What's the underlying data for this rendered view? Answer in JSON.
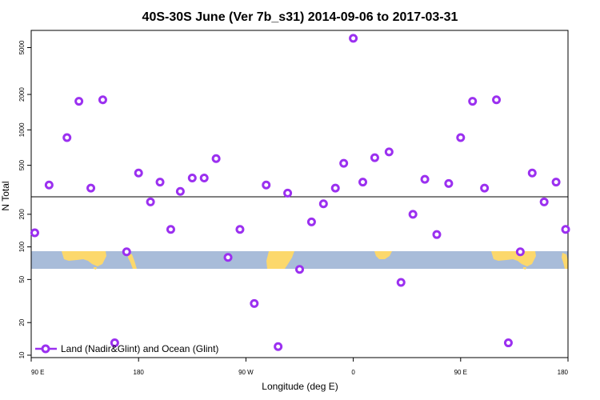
{
  "chart_data": {
    "type": "scatter",
    "title": "40S-30S June (Ver 7b_s31)   2014-09-06 to 2017-03-31",
    "xlabel": "Longitude (deg E)",
    "ylabel": "N Total",
    "x_tick_labels": [
      "90 E",
      "180",
      "90 W",
      "0",
      "90 E",
      "180"
    ],
    "upper_panel": {
      "scale": "log",
      "ylim": [
        270,
        7000
      ],
      "y_ticks": [
        500,
        1000,
        2000,
        5000
      ]
    },
    "lower_panel": {
      "scale": "log",
      "ylim": [
        9.5,
        290
      ],
      "y_ticks": [
        10,
        20,
        50,
        100,
        200
      ]
    },
    "series": [
      {
        "name": "Land (Nadir&Glint) and Ocean (Glint)",
        "color": "#9b30f0",
        "marker": "open-circle",
        "x_offset_deg_from_90E": [
          3,
          15,
          30,
          40,
          50,
          60,
          70,
          80,
          90,
          100,
          108,
          117,
          125,
          135,
          145,
          155,
          165,
          175,
          187,
          197,
          207,
          215,
          225,
          235,
          245,
          255,
          262,
          270,
          278,
          288,
          300,
          310,
          320,
          330,
          340,
          350,
          360,
          370,
          380,
          390,
          400,
          410,
          420,
          430,
          440,
          448
        ],
        "y": [
          135,
          340,
          860,
          1750,
          320,
          1800,
          13,
          90,
          430,
          260,
          360,
          145,
          300,
          390,
          390,
          570,
          80,
          145,
          30,
          340,
          12,
          290,
          62,
          170,
          250,
          320,
          520,
          6000,
          360,
          580,
          650,
          47,
          200,
          380,
          130,
          350,
          860,
          1750,
          320,
          1800,
          13,
          90,
          430,
          260,
          360,
          145
        ]
      }
    ]
  }
}
